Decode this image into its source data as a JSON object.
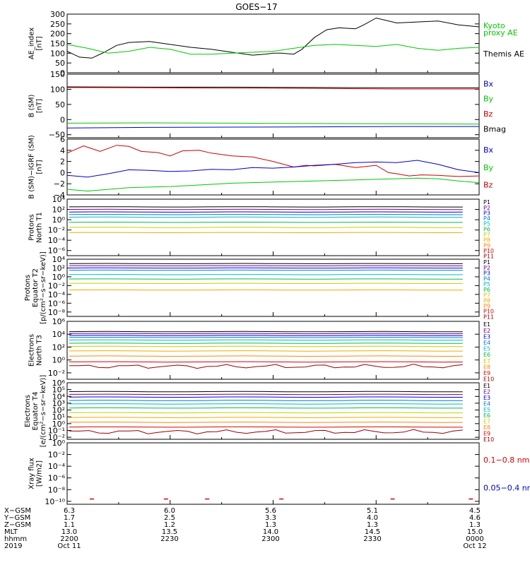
{
  "title": "GOES−17",
  "chart_data": [
    {
      "type": "line",
      "ylabel": [
        "AE_index",
        "[nT]"
      ],
      "ylim": [
        0,
        300
      ],
      "yticks": [
        "300",
        "250",
        "200",
        "150",
        "100",
        "50",
        "0"
      ],
      "ytick_values": [
        300,
        250,
        200,
        150,
        100,
        50,
        0
      ],
      "scale": "linear",
      "legend": [
        {
          "label": "Kyoto",
          "color": "#00c800"
        },
        {
          "label": "proxy AE",
          "color": "#00c800"
        },
        {
          "label": "Themis AE",
          "color": "#000000"
        }
      ],
      "series": [
        {
          "color": "#000000",
          "x": [
            0,
            3,
            6,
            9,
            12,
            15,
            20,
            25,
            30,
            35,
            40,
            45,
            48,
            50,
            52,
            55,
            57,
            60,
            63,
            66,
            70,
            72,
            75,
            80,
            85,
            90,
            95,
            100
          ],
          "y": [
            110,
            80,
            75,
            105,
            140,
            155,
            160,
            145,
            130,
            120,
            105,
            90,
            95,
            100,
            100,
            95,
            120,
            180,
            220,
            230,
            225,
            245,
            280,
            255,
            260,
            265,
            245,
            235
          ]
        },
        {
          "color": "#00c800",
          "x": [
            0,
            5,
            10,
            15,
            20,
            25,
            30,
            35,
            40,
            45,
            50,
            55,
            60,
            65,
            70,
            75,
            80,
            85,
            90,
            95,
            100
          ],
          "y": [
            145,
            125,
            100,
            110,
            130,
            120,
            95,
            95,
            100,
            105,
            110,
            125,
            140,
            145,
            140,
            135,
            145,
            125,
            115,
            125,
            130
          ]
        }
      ]
    },
    {
      "type": "line",
      "ylabel": [
        "B (SM)",
        "[nT]"
      ],
      "ylim": [
        -60,
        150
      ],
      "yticks": [
        "150",
        "100",
        "50",
        "0",
        "−50"
      ],
      "ytick_values": [
        150,
        100,
        50,
        0,
        -50
      ],
      "scale": "linear",
      "legend": [
        {
          "label": "Bx",
          "color": "#0000cc"
        },
        {
          "label": "By",
          "color": "#00c800"
        },
        {
          "label": "Bz",
          "color": "#cc0000"
        },
        {
          "label": "Bmag",
          "color": "#000000"
        }
      ],
      "series": [
        {
          "color": "#000000",
          "x": [
            0,
            20,
            40,
            60,
            80,
            100
          ],
          "y": [
            108,
            107,
            107,
            106,
            105,
            105
          ]
        },
        {
          "color": "#cc0000",
          "x": [
            0,
            20,
            40,
            60,
            80,
            100
          ],
          "y": [
            106,
            105,
            104,
            103,
            101,
            101
          ]
        },
        {
          "color": "#0000cc",
          "x": [
            0,
            20,
            40,
            60,
            80,
            100
          ],
          "y": [
            -28,
            -26,
            -25,
            -24,
            -23,
            -23
          ]
        },
        {
          "color": "#00c800",
          "x": [
            0,
            20,
            40,
            60,
            80,
            100
          ],
          "y": [
            -12,
            -11,
            -12,
            -13,
            -14,
            -15
          ]
        }
      ]
    },
    {
      "type": "line",
      "ylabel": [
        "B (SM)−IGRF (SM)",
        "[nT]"
      ],
      "ylim": [
        -4,
        6
      ],
      "yticks": [
        "6",
        "4",
        "2",
        "0",
        "−2",
        "−4"
      ],
      "ytick_values": [
        6,
        4,
        2,
        0,
        -2,
        -4
      ],
      "scale": "linear",
      "legend": [
        {
          "label": "Bx",
          "color": "#0000cc"
        },
        {
          "label": "By",
          "color": "#00c800"
        },
        {
          "label": "Bz",
          "color": "#cc0000"
        }
      ],
      "series": [
        {
          "color": "#cc0000",
          "x": [
            0,
            4,
            8,
            12,
            15,
            18,
            22,
            25,
            28,
            32,
            35,
            40,
            45,
            50,
            55,
            58,
            60,
            65,
            70,
            75,
            78,
            80,
            83,
            86,
            90,
            95,
            100
          ],
          "y": [
            3.5,
            4.8,
            3.8,
            4.9,
            4.7,
            3.8,
            3.6,
            3.0,
            3.9,
            4.0,
            3.5,
            3.0,
            2.8,
            2.0,
            1.0,
            1.3,
            1.2,
            1.5,
            0.9,
            1.3,
            0.0,
            -0.2,
            -0.6,
            -0.4,
            -0.5,
            -0.7,
            -0.6
          ]
        },
        {
          "color": "#0000cc",
          "x": [
            0,
            5,
            10,
            15,
            20,
            25,
            30,
            35,
            40,
            45,
            50,
            55,
            60,
            65,
            70,
            75,
            80,
            85,
            90,
            95,
            100
          ],
          "y": [
            -0.5,
            -0.8,
            -0.2,
            0.5,
            0.4,
            0.2,
            0.3,
            0.6,
            0.5,
            0.9,
            0.8,
            1.0,
            1.3,
            1.5,
            1.8,
            1.9,
            1.8,
            2.2,
            1.5,
            0.5,
            0.0
          ]
        },
        {
          "color": "#00c800",
          "x": [
            0,
            5,
            10,
            15,
            20,
            25,
            30,
            35,
            40,
            45,
            50,
            55,
            60,
            65,
            70,
            75,
            80,
            85,
            90,
            95,
            100
          ],
          "y": [
            -3.0,
            -3.3,
            -3.0,
            -2.7,
            -2.6,
            -2.5,
            -2.3,
            -2.1,
            -1.9,
            -1.8,
            -1.7,
            -1.6,
            -1.5,
            -1.4,
            -1.3,
            -1.2,
            -1.1,
            -1.0,
            -1.1,
            -1.5,
            -1.8
          ]
        }
      ]
    },
    {
      "type": "line",
      "ylabel": [
        "Protons",
        "North T1"
      ],
      "ylim": [
        -7,
        4
      ],
      "scale": "log",
      "yticks": [
        "10⁴",
        "10²",
        "10⁰",
        "10⁻²",
        "10⁻⁴",
        "10⁻⁶"
      ],
      "ytick_values": [
        4,
        2,
        0,
        -2,
        -4,
        -6
      ],
      "legend": [
        {
          "label": "P1",
          "color": "#000000"
        },
        {
          "label": "P2",
          "color": "#770077"
        },
        {
          "label": "P3",
          "color": "#0000cc"
        },
        {
          "label": "P4",
          "color": "#0077dd"
        },
        {
          "label": "P5",
          "color": "#00bbbb"
        },
        {
          "label": "P6",
          "color": "#00bb55"
        },
        {
          "label": "P7",
          "color": "#cccc00"
        },
        {
          "label": "P8",
          "color": "#eeaa00"
        },
        {
          "label": "P9",
          "color": "#ff8800"
        },
        {
          "label": "P10",
          "color": "#dd0000"
        },
        {
          "label": "P11",
          "color": "#990000"
        }
      ],
      "series": [
        {
          "color": "#000000",
          "level": 2.5
        },
        {
          "color": "#770077",
          "level": 2.0
        },
        {
          "color": "#0000cc",
          "level": 1.5
        },
        {
          "color": "#0077dd",
          "level": 1.0
        },
        {
          "color": "#00bbbb",
          "level": 0.5
        },
        {
          "color": "#00bb55",
          "level": -0.5
        },
        {
          "color": "#cccc00",
          "level": -1.5
        },
        {
          "color": "#eeaa00",
          "level": -2.5
        }
      ]
    },
    {
      "type": "line",
      "ylabel": [
        "Protons",
        "Equator T2",
        "[p/(cm²−s−sr−keV)]"
      ],
      "ylim": [
        -9,
        4
      ],
      "scale": "log",
      "yticks": [
        "10⁴",
        "10²",
        "10⁰",
        "10⁻²",
        "10⁻⁴",
        "10⁻⁶",
        "10⁻⁸"
      ],
      "ytick_values": [
        4,
        2,
        0,
        -2,
        -4,
        -6,
        -8
      ],
      "legend": [
        {
          "label": "P1",
          "color": "#000000"
        },
        {
          "label": "P2",
          "color": "#770077"
        },
        {
          "label": "P3",
          "color": "#0000cc"
        },
        {
          "label": "P4",
          "color": "#0077dd"
        },
        {
          "label": "P5",
          "color": "#00bbbb"
        },
        {
          "label": "P6",
          "color": "#00bb55"
        },
        {
          "label": "P7",
          "color": "#cccc00"
        },
        {
          "label": "P8",
          "color": "#eeaa00"
        },
        {
          "label": "P9",
          "color": "#ff8800"
        },
        {
          "label": "P10",
          "color": "#dd0000"
        },
        {
          "label": "P11",
          "color": "#990000"
        }
      ],
      "series": [
        {
          "color": "#000000",
          "level": 3.0
        },
        {
          "color": "#770077",
          "level": 2.5
        },
        {
          "color": "#0000cc",
          "level": 2.0
        },
        {
          "color": "#0077dd",
          "level": 1.5
        },
        {
          "color": "#00bbbb",
          "level": 0.5
        },
        {
          "color": "#00bb55",
          "level": -0.5
        },
        {
          "color": "#cccc00",
          "level": -1.5
        },
        {
          "color": "#eeaa00",
          "level": -3.0
        }
      ]
    },
    {
      "type": "line",
      "ylabel": [
        "Electrons",
        "North T3"
      ],
      "ylim": [
        -3,
        6
      ],
      "scale": "log",
      "yticks": [
        "10⁶",
        "10⁴",
        "10²",
        "10⁰",
        "10⁻²"
      ],
      "ytick_values": [
        6,
        4,
        2,
        0,
        -2
      ],
      "legend": [
        {
          "label": "E1",
          "color": "#000000"
        },
        {
          "label": "E2",
          "color": "#770077"
        },
        {
          "label": "E3",
          "color": "#0000cc"
        },
        {
          "label": "E4",
          "color": "#0077dd"
        },
        {
          "label": "E5",
          "color": "#00bbbb"
        },
        {
          "label": "E6",
          "color": "#00bb55"
        },
        {
          "label": "E7",
          "color": "#cccc00"
        },
        {
          "label": "E8",
          "color": "#ff8800"
        },
        {
          "label": "E9",
          "color": "#dd0000"
        },
        {
          "label": "E10",
          "color": "#990000"
        }
      ],
      "series": [
        {
          "color": "#000000",
          "level": 4.4
        },
        {
          "color": "#770077",
          "level": 4.1
        },
        {
          "color": "#0000cc",
          "level": 3.8
        },
        {
          "color": "#0077dd",
          "level": 3.5
        },
        {
          "color": "#00bbbb",
          "level": 3.1
        },
        {
          "color": "#00bb55",
          "level": 2.6
        },
        {
          "color": "#cccc00",
          "level": 2.1
        },
        {
          "color": "#eeaa00",
          "level": 1.4
        },
        {
          "color": "#ff8800",
          "level": 0.6
        },
        {
          "color": "#dd0000",
          "level": -0.3
        },
        {
          "color": "#990000",
          "level": -1.0,
          "wavy": true
        }
      ]
    },
    {
      "type": "line",
      "ylabel": [
        "Electrons",
        "Equator T4",
        "[e/(cm²−s−sr−keV)]"
      ],
      "ylim": [
        -2.3,
        6
      ],
      "scale": "log",
      "yticks": [
        "10⁶",
        "10⁵",
        "10⁴",
        "10³",
        "10²",
        "10¹",
        "10⁰",
        "10⁻¹",
        "10⁻²"
      ],
      "ytick_values": [
        6,
        5,
        4,
        3,
        2,
        1,
        0,
        -1,
        -2
      ],
      "legend": [
        {
          "label": "E1",
          "color": "#000000"
        },
        {
          "label": "E2",
          "color": "#770077"
        },
        {
          "label": "E3",
          "color": "#0000cc"
        },
        {
          "label": "E4",
          "color": "#0077dd"
        },
        {
          "label": "E5",
          "color": "#00bbbb"
        },
        {
          "label": "E6",
          "color": "#00bb55"
        },
        {
          "label": "E7",
          "color": "#cccc00"
        },
        {
          "label": "E8",
          "color": "#ff8800"
        },
        {
          "label": "E9",
          "color": "#dd0000"
        },
        {
          "label": "E10",
          "color": "#990000"
        }
      ],
      "series": [
        {
          "color": "#000000",
          "level": 4.7
        },
        {
          "color": "#770077",
          "level": 4.3
        },
        {
          "color": "#0000cc",
          "level": 3.9
        },
        {
          "color": "#0077dd",
          "level": 3.4
        },
        {
          "color": "#00bbbb",
          "level": 2.9
        },
        {
          "color": "#00bb55",
          "level": 2.3
        },
        {
          "color": "#cccc00",
          "level": 1.6
        },
        {
          "color": "#eeaa00",
          "level": 0.9
        },
        {
          "color": "#ff8800",
          "level": 0.2
        },
        {
          "color": "#dd0000",
          "level": -0.5
        },
        {
          "color": "#990000",
          "level": -1.2,
          "wavy": true
        }
      ]
    },
    {
      "type": "scatter",
      "ylabel": [
        "Xray flux",
        "[W/m2]"
      ],
      "ylim": [
        -10.5,
        0
      ],
      "scale": "log",
      "yticks": [
        "10⁰",
        "10⁻²",
        "10⁻⁴",
        "10⁻⁶",
        "10⁻⁸",
        "10⁻¹⁰"
      ],
      "ytick_values": [
        0,
        -2,
        -4,
        -6,
        -8,
        -10
      ],
      "legend": [
        {
          "label": "0.1−0.8 nm",
          "color": "#dd0000"
        },
        {
          "label": "0.05−0.4 nm",
          "color": "#0000cc"
        }
      ],
      "series": [
        {
          "color": "#dd0000",
          "level": -9.6,
          "x": [
            6,
            24,
            34,
            52,
            79,
            98
          ]
        }
      ]
    }
  ],
  "footer": {
    "rows": [
      {
        "label": "X−GSM",
        "values": [
          "6.3",
          "6.0",
          "5.6",
          "5.1",
          "4.5"
        ]
      },
      {
        "label": "Y−GSM",
        "values": [
          "1.7",
          "2.5",
          "3.3",
          "4.0",
          "4.6"
        ]
      },
      {
        "label": "Z−GSM",
        "values": [
          "1.1",
          "1.2",
          "1.3",
          "1.3",
          "1.3"
        ]
      },
      {
        "label": "MLT",
        "values": [
          "13.0",
          "13.5",
          "14.0",
          "14.5",
          "15.0"
        ]
      },
      {
        "label": "hhmm",
        "values": [
          "2200",
          "2230",
          "2300",
          "2330",
          "0000"
        ]
      },
      {
        "label": "2019",
        "values": [
          "Oct 11",
          "",
          "",
          "",
          "Oct 12"
        ]
      }
    ]
  }
}
